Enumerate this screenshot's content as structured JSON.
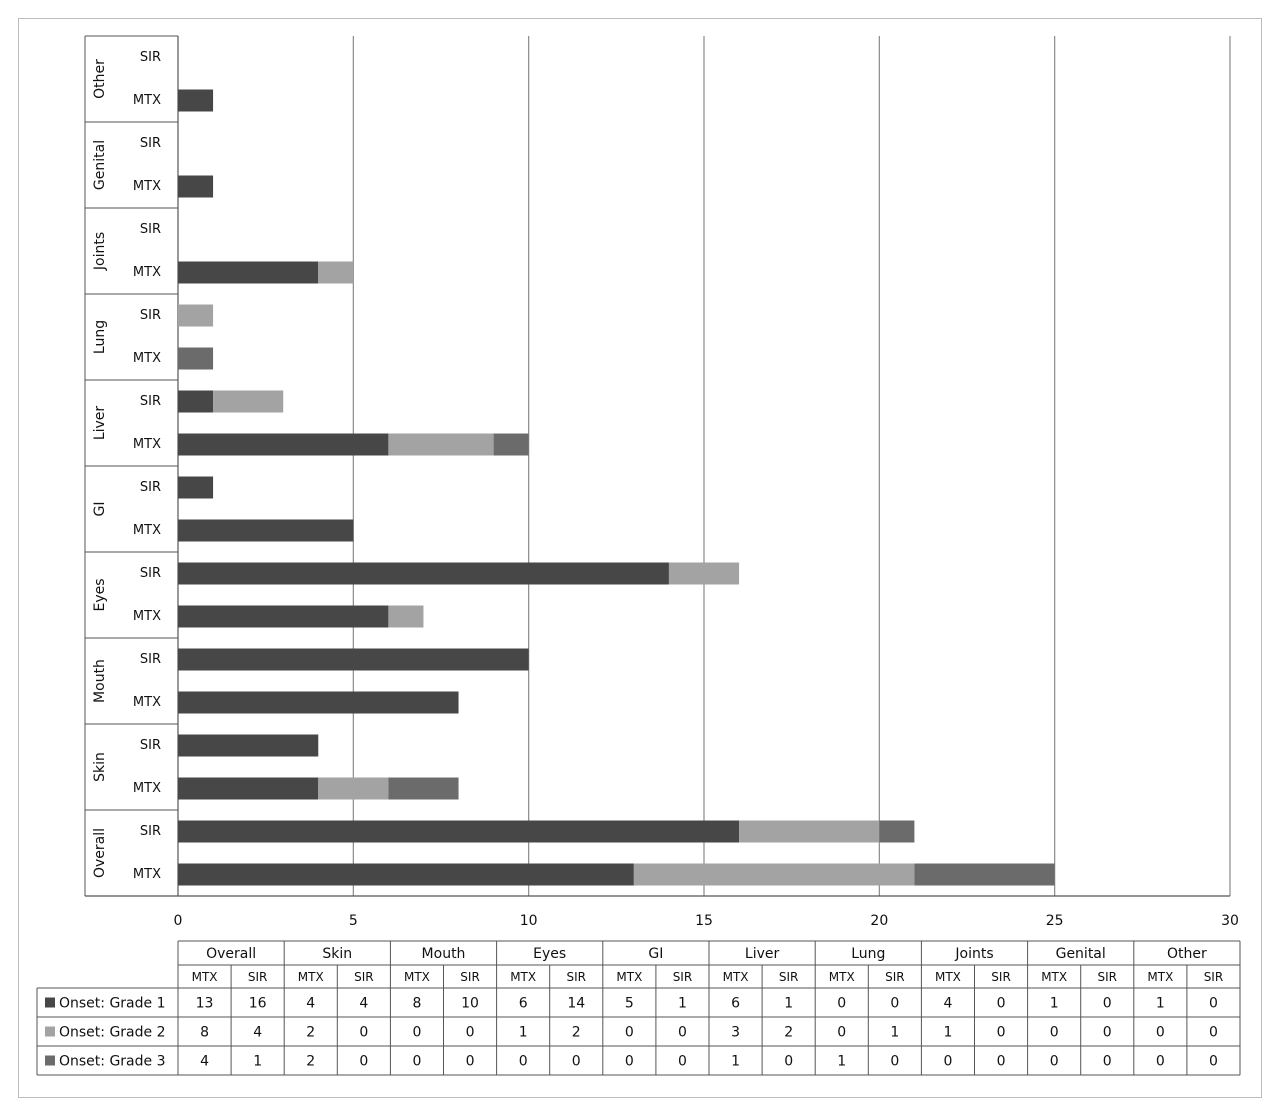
{
  "chart_data": {
    "type": "bar",
    "orientation": "horizontal",
    "stacked": true,
    "xlim": [
      0,
      30
    ],
    "x_ticks": [
      "0",
      "5",
      "10",
      "15",
      "20",
      "25",
      "30"
    ],
    "groups": [
      "Overall",
      "Skin",
      "Mouth",
      "Eyes",
      "GI",
      "Liver",
      "Lung",
      "Joints",
      "Genital",
      "Other"
    ],
    "subcategories": [
      "MTX",
      "SIR"
    ],
    "series": [
      {
        "name": "Onset: Grade 1",
        "color": "#474747",
        "values": [
          13,
          16,
          4,
          4,
          8,
          10,
          6,
          14,
          5,
          1,
          6,
          1,
          0,
          0,
          4,
          0,
          1,
          0,
          1,
          0
        ]
      },
      {
        "name": "Onset: Grade 2",
        "color": "#a3a3a3",
        "values": [
          8,
          4,
          2,
          0,
          0,
          0,
          1,
          2,
          0,
          0,
          3,
          2,
          0,
          1,
          1,
          0,
          0,
          0,
          0,
          0
        ]
      },
      {
        "name": "Onset: Grade 3",
        "color": "#6b6b6b",
        "values": [
          4,
          1,
          2,
          0,
          0,
          0,
          0,
          0,
          0,
          0,
          1,
          0,
          1,
          0,
          0,
          0,
          0,
          0,
          0,
          0
        ]
      }
    ],
    "grid": "vertical",
    "legend": "data-table-bottom"
  }
}
